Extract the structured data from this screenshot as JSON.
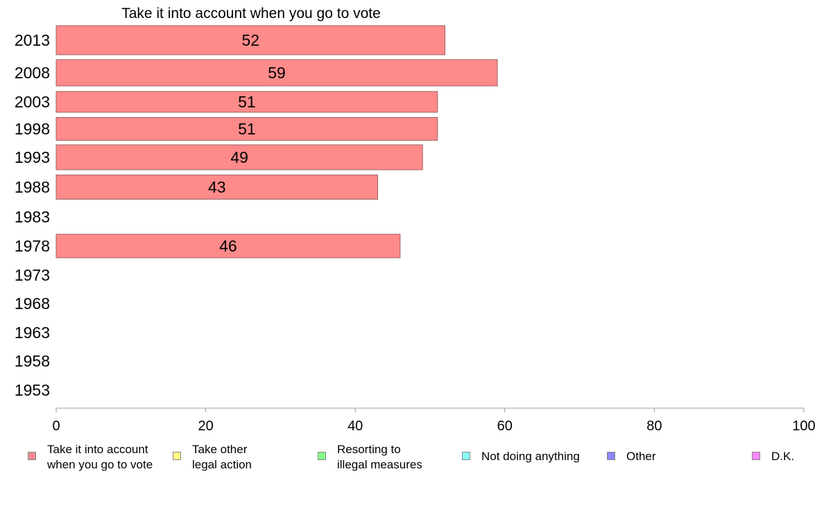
{
  "chart_data": {
    "type": "bar",
    "orientation": "horizontal",
    "title": "Take it into account when you go to vote",
    "categories": [
      "2013",
      "2008",
      "2003",
      "1998",
      "1993",
      "1988",
      "1983",
      "1978",
      "1973",
      "1968",
      "1963",
      "1958",
      "1953"
    ],
    "series": [
      {
        "name": "Take it into account when you go to vote",
        "color": "#ff8a8a",
        "values": [
          52,
          59,
          51,
          51,
          49,
          43,
          null,
          46,
          null,
          null,
          null,
          null,
          null
        ],
        "labels": [
          "52",
          "59",
          "51",
          "51",
          "49",
          "43",
          "",
          "46",
          "",
          "",
          "",
          "",
          ""
        ]
      }
    ],
    "xlim": [
      0,
      100
    ],
    "xticks": [
      "0",
      "20",
      "40",
      "60",
      "80",
      "100"
    ],
    "grid": false,
    "legend_position": "bottom"
  },
  "legend": [
    {
      "label": "Take it into account\nwhen you go to vote",
      "color": "#ff8a8a"
    },
    {
      "label": "Take other\nlegal action",
      "color": "#ffff88"
    },
    {
      "label": "Resorting to\nillegal measures",
      "color": "#88ff88"
    },
    {
      "label": "Not doing anything",
      "color": "#88ffff"
    },
    {
      "label": "Other",
      "color": "#8888ff"
    },
    {
      "label": "D.K.",
      "color": "#ff88ff"
    }
  ]
}
